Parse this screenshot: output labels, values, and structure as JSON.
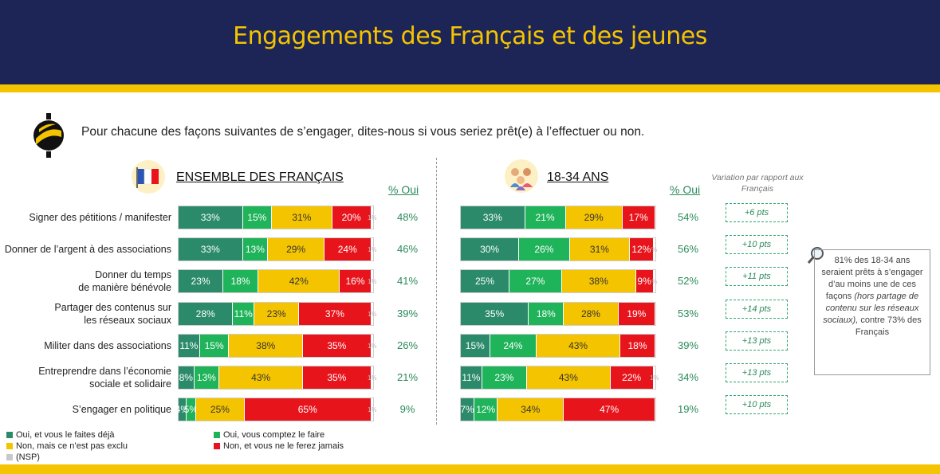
{
  "title": "Engagements des Français et des jeunes",
  "question": "Pour chacune des façons suivantes de s’engager, dites-nous si vous seriez prêt(e) à l’effectuer ou non.",
  "colors": {
    "faites_deja": "#2a8a6a",
    "comptez_faire": "#1fb35a",
    "pas_exclu": "#f5c400",
    "ferez_jamais": "#e8141c",
    "nsp": "#c8c8c8"
  },
  "sections": {
    "all": {
      "title": "ENSEMBLE DES FRANÇAIS",
      "pct_header": "% Oui"
    },
    "young": {
      "title": "18-34 ANS",
      "pct_header": "% Oui"
    }
  },
  "variation_header": "Variation par rapport aux Français",
  "note": {
    "line1": "81% des 18-34 ans seraient prêts à s’engager d’au moins une de ces façons",
    "italic": "(hors partage de contenu sur les réseaux sociaux),",
    "line2": "contre 73% des Français"
  },
  "legend": [
    {
      "key": "faites_deja",
      "label": "Oui, et vous le faites déjà"
    },
    {
      "key": "comptez_faire",
      "label": "Oui, vous comptez le faire"
    },
    {
      "key": "pas_exclu",
      "label": "Non, mais ce n’est pas exclu"
    },
    {
      "key": "ferez_jamais",
      "label": "Non, et vous ne le ferez jamais"
    },
    {
      "key": "nsp",
      "label": "(NSP)"
    }
  ],
  "chart_data": [
    {
      "type": "bar",
      "orientation": "horizontal-stacked-100",
      "title": "ENSEMBLE DES FRANÇAIS",
      "categories": [
        "Signer des pétitions / manifester",
        "Donner de l’argent à des associations",
        "Donner du temps de manière bénévole",
        "Partager des contenus sur les réseaux sociaux",
        "Militer dans des associations",
        "Entreprendre dans l’économie sociale et solidaire",
        "S’engager en politique"
      ],
      "category_lines": [
        [
          "Signer des pétitions / manifester"
        ],
        [
          "Donner de l’argent à des associations"
        ],
        [
          "Donner du temps",
          "de manière bénévole"
        ],
        [
          "Partager des contenus sur",
          "les réseaux sociaux"
        ],
        [
          "Militer dans des associations"
        ],
        [
          "Entreprendre dans l’économie",
          "sociale et solidaire"
        ],
        [
          "S’engager en politique"
        ]
      ],
      "series": [
        {
          "name": "Oui, et vous le faites déjà",
          "key": "faites_deja",
          "values": [
            33,
            33,
            23,
            28,
            11,
            8,
            4
          ]
        },
        {
          "name": "Oui, vous comptez le faire",
          "key": "comptez_faire",
          "values": [
            15,
            13,
            18,
            11,
            15,
            13,
            5
          ]
        },
        {
          "name": "Non, mais ce n’est pas exclu",
          "key": "pas_exclu",
          "values": [
            31,
            29,
            42,
            23,
            38,
            43,
            25
          ]
        },
        {
          "name": "Non, et vous ne le ferez jamais",
          "key": "ferez_jamais",
          "values": [
            20,
            24,
            16,
            37,
            35,
            35,
            65
          ]
        },
        {
          "name": "(NSP)",
          "key": "nsp",
          "values": [
            1,
            1,
            1,
            1,
            1,
            1,
            1
          ]
        }
      ],
      "pct_oui": [
        "48%",
        "46%",
        "41%",
        "39%",
        "26%",
        "21%",
        "9%"
      ]
    },
    {
      "type": "bar",
      "orientation": "horizontal-stacked-100",
      "title": "18-34 ANS",
      "series": [
        {
          "name": "Oui, et vous le faites déjà",
          "key": "faites_deja",
          "values": [
            33,
            30,
            25,
            35,
            15,
            11,
            7
          ]
        },
        {
          "name": "Oui, vous comptez le faire",
          "key": "comptez_faire",
          "values": [
            21,
            26,
            27,
            18,
            24,
            23,
            12
          ]
        },
        {
          "name": "Non, mais ce n’est pas exclu",
          "key": "pas_exclu",
          "values": [
            29,
            31,
            38,
            28,
            43,
            43,
            34
          ]
        },
        {
          "name": "Non, et vous ne le ferez jamais",
          "key": "ferez_jamais",
          "values": [
            17,
            12,
            9,
            19,
            18,
            22,
            47
          ]
        },
        {
          "name": "(NSP)",
          "key": "nsp",
          "values": [
            0,
            1,
            1,
            0,
            0,
            1,
            0
          ]
        }
      ],
      "nsp_labels": [
        "",
        "%",
        "%",
        "",
        "",
        "1%",
        ""
      ],
      "pct_oui": [
        "54%",
        "56%",
        "52%",
        "53%",
        "39%",
        "34%",
        "19%"
      ],
      "variation": [
        "+6 pts",
        "+10 pts",
        "+11 pts",
        "+14 pts",
        "+13 pts",
        "+13 pts",
        "+10 pts"
      ]
    }
  ]
}
